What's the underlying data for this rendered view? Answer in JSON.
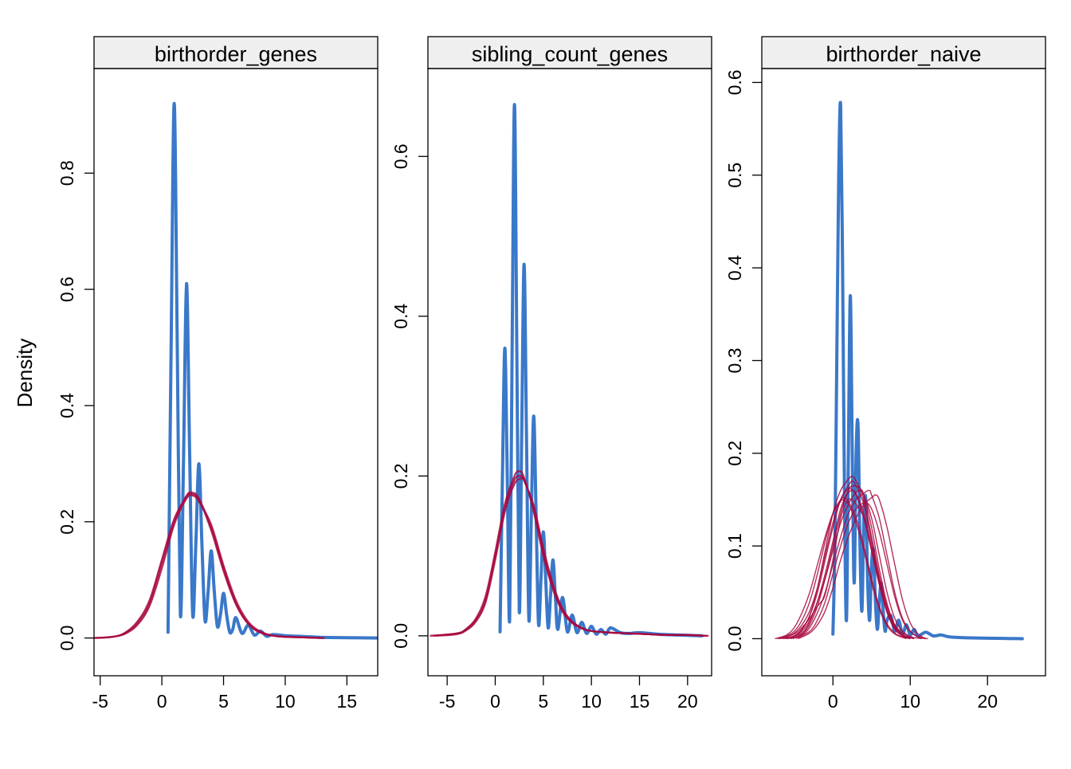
{
  "ylabel": "Density",
  "colors": {
    "observed": "#3A78C9",
    "imputed": "#A8083F",
    "strip_bg": "#EFEFEF"
  },
  "chart_data": [
    {
      "type": "line",
      "title": "birthorder_genes",
      "xlim": [
        -5.5,
        17.5
      ],
      "ylim": [
        -0.065,
        0.98
      ],
      "xticks": [
        -5,
        0,
        5,
        10,
        15
      ],
      "yticks": [
        0.0,
        0.2,
        0.4,
        0.6,
        0.8
      ],
      "observed": {
        "x": [
          0.5,
          0.75,
          1.0,
          1.25,
          1.5,
          1.75,
          2.0,
          2.25,
          2.5,
          2.75,
          3.0,
          3.25,
          3.5,
          3.75,
          4.0,
          4.25,
          4.5,
          4.75,
          5.0,
          5.25,
          5.5,
          5.75,
          6.0,
          6.5,
          7.0,
          7.5,
          8.0,
          8.5,
          9.0,
          10.0,
          11.0,
          12.0,
          13.0,
          15.0,
          17.5
        ],
        "y": [
          0.01,
          0.5,
          0.92,
          0.5,
          0.04,
          0.3,
          0.61,
          0.32,
          0.04,
          0.16,
          0.3,
          0.16,
          0.03,
          0.08,
          0.15,
          0.08,
          0.02,
          0.04,
          0.077,
          0.04,
          0.01,
          0.015,
          0.035,
          0.008,
          0.022,
          0.005,
          0.012,
          0.003,
          0.006,
          0.004,
          0.003,
          0.002,
          0.001,
          0.0005,
          0.0
        ]
      },
      "imputed": [
        {
          "x": [
            -5.5,
            -4.0,
            -3.0,
            -2.0,
            -1.0,
            0.0,
            1.0,
            2.0,
            2.5,
            3.0,
            4.0,
            5.0,
            6.0,
            7.0,
            8.0,
            9.0,
            10.0,
            11.5,
            13.0
          ],
          "y": [
            0.0,
            0.002,
            0.008,
            0.025,
            0.06,
            0.13,
            0.2,
            0.245,
            0.25,
            0.24,
            0.19,
            0.12,
            0.06,
            0.025,
            0.01,
            0.004,
            0.002,
            0.001,
            0.0
          ]
        },
        {
          "x": [
            -5.3,
            -4.0,
            -3.0,
            -2.0,
            -1.0,
            0.0,
            1.0,
            2.0,
            2.5,
            3.0,
            4.0,
            5.0,
            6.0,
            7.0,
            8.0,
            9.0,
            10.0,
            11.5,
            12.8
          ],
          "y": [
            0.0,
            0.002,
            0.007,
            0.022,
            0.055,
            0.12,
            0.195,
            0.24,
            0.245,
            0.235,
            0.195,
            0.125,
            0.065,
            0.028,
            0.011,
            0.004,
            0.002,
            0.001,
            0.0
          ]
        },
        {
          "x": [
            -5.6,
            -4.0,
            -3.0,
            -2.0,
            -1.0,
            0.0,
            1.0,
            2.0,
            2.3,
            3.0,
            4.0,
            5.0,
            6.0,
            7.0,
            8.0,
            9.0,
            10.0,
            11.5,
            13.2
          ],
          "y": [
            0.0,
            0.002,
            0.009,
            0.028,
            0.065,
            0.135,
            0.205,
            0.243,
            0.248,
            0.238,
            0.185,
            0.115,
            0.058,
            0.024,
            0.009,
            0.004,
            0.002,
            0.001,
            0.0
          ]
        }
      ]
    },
    {
      "type": "line",
      "title": "sibling_count_genes",
      "xlim": [
        -7,
        22.5
      ],
      "ylim": [
        -0.05,
        0.71
      ],
      "xticks": [
        -5,
        0,
        5,
        10,
        15,
        20
      ],
      "yticks": [
        0.0,
        0.2,
        0.4,
        0.6
      ],
      "observed": {
        "x": [
          0.5,
          0.75,
          1.0,
          1.25,
          1.5,
          1.75,
          2.0,
          2.25,
          2.5,
          2.75,
          3.0,
          3.25,
          3.5,
          3.75,
          4.0,
          4.25,
          4.5,
          4.75,
          5.0,
          5.25,
          5.5,
          5.75,
          6.0,
          6.25,
          6.5,
          7.0,
          7.5,
          8.0,
          8.5,
          9.0,
          9.5,
          10.0,
          10.5,
          11.0,
          11.5,
          12.0,
          13.0,
          14.0,
          15.0,
          17.0,
          19.0,
          21.5
        ],
        "y": [
          0.005,
          0.2,
          0.36,
          0.2,
          0.02,
          0.35,
          0.665,
          0.35,
          0.03,
          0.25,
          0.465,
          0.25,
          0.02,
          0.15,
          0.275,
          0.15,
          0.015,
          0.07,
          0.13,
          0.07,
          0.01,
          0.05,
          0.095,
          0.05,
          0.008,
          0.048,
          0.005,
          0.026,
          0.004,
          0.017,
          0.003,
          0.012,
          0.002,
          0.008,
          0.002,
          0.01,
          0.004,
          0.003,
          0.004,
          0.002,
          0.001,
          0.0
        ]
      },
      "imputed": [
        {
          "x": [
            -6.5,
            -4.0,
            -3.0,
            -2.0,
            -1.0,
            0.0,
            1.0,
            2.0,
            2.6,
            3.0,
            4.0,
            5.0,
            6.0,
            7.0,
            8.0,
            9.0,
            10.0,
            12.0,
            14.0,
            16.0,
            18.0,
            20.0,
            22.0
          ],
          "y": [
            0.0,
            0.003,
            0.008,
            0.02,
            0.045,
            0.1,
            0.16,
            0.195,
            0.2,
            0.195,
            0.16,
            0.105,
            0.062,
            0.032,
            0.017,
            0.01,
            0.006,
            0.004,
            0.003,
            0.002,
            0.001,
            0.001,
            0.0
          ]
        },
        {
          "x": [
            -6.8,
            -4.0,
            -3.0,
            -2.0,
            -1.0,
            0.0,
            1.0,
            2.0,
            2.5,
            3.0,
            4.0,
            5.0,
            6.0,
            7.0,
            8.0,
            9.0,
            10.0,
            12.0,
            14.0,
            16.0,
            18.0,
            20.0,
            22.2
          ],
          "y": [
            0.0,
            0.003,
            0.009,
            0.022,
            0.05,
            0.105,
            0.165,
            0.2,
            0.206,
            0.198,
            0.155,
            0.1,
            0.058,
            0.03,
            0.016,
            0.009,
            0.006,
            0.004,
            0.003,
            0.002,
            0.001,
            0.001,
            0.0
          ]
        },
        {
          "x": [
            -6.2,
            -4.0,
            -3.0,
            -2.0,
            -1.0,
            0.0,
            1.0,
            2.0,
            2.7,
            3.0,
            4.0,
            5.0,
            6.0,
            7.0,
            8.0,
            9.0,
            10.0,
            12.0,
            14.0,
            16.0,
            18.0,
            20.0,
            21.8
          ],
          "y": [
            0.0,
            0.002,
            0.007,
            0.018,
            0.042,
            0.095,
            0.155,
            0.19,
            0.197,
            0.194,
            0.163,
            0.11,
            0.065,
            0.034,
            0.018,
            0.01,
            0.006,
            0.004,
            0.003,
            0.002,
            0.001,
            0.001,
            0.0
          ]
        }
      ]
    },
    {
      "type": "line",
      "title": "birthorder_naive",
      "xlim": [
        -9.2,
        27.5
      ],
      "ylim": [
        -0.04,
        0.615
      ],
      "xticks": [
        0,
        10,
        20
      ],
      "yticks": [
        0.0,
        0.1,
        0.2,
        0.3,
        0.4,
        0.5,
        0.6
      ],
      "observed": {
        "x": [
          0.0,
          0.25,
          0.5,
          0.75,
          1.0,
          1.25,
          1.5,
          1.75,
          2.0,
          2.25,
          2.5,
          2.75,
          3.0,
          3.25,
          3.5,
          3.75,
          4.0,
          4.25,
          4.5,
          4.75,
          5.0,
          5.25,
          5.5,
          5.75,
          6.0,
          6.25,
          6.5,
          6.75,
          7.0,
          7.5,
          8.0,
          8.5,
          9.0,
          9.5,
          10.0,
          10.5,
          11.0,
          12.0,
          13.0,
          14.0,
          15.0,
          17.0,
          20.0,
          24.5
        ],
        "y": [
          0.005,
          0.1,
          0.3,
          0.5,
          0.575,
          0.4,
          0.15,
          0.02,
          0.2,
          0.37,
          0.2,
          0.06,
          0.2,
          0.23,
          0.1,
          0.03,
          0.13,
          0.15,
          0.06,
          0.02,
          0.08,
          0.095,
          0.04,
          0.01,
          0.04,
          0.06,
          0.03,
          0.008,
          0.02,
          0.025,
          0.008,
          0.02,
          0.005,
          0.015,
          0.004,
          0.01,
          0.003,
          0.007,
          0.003,
          0.004,
          0.002,
          0.001,
          0.0005,
          0.0
        ]
      },
      "imputed": [
        {
          "x": [
            -6.5,
            -5,
            -4,
            -3,
            -2,
            -1,
            0,
            1,
            2,
            2.5,
            3,
            4,
            5,
            6,
            7,
            8,
            9,
            10,
            11.5
          ],
          "y": [
            0.0,
            0.003,
            0.01,
            0.025,
            0.05,
            0.085,
            0.12,
            0.15,
            0.165,
            0.17,
            0.165,
            0.145,
            0.105,
            0.065,
            0.035,
            0.015,
            0.006,
            0.002,
            0.0
          ]
        },
        {
          "x": [
            -7.2,
            -6,
            -5,
            -4,
            -3,
            -2,
            -1,
            0,
            1,
            1.5,
            2,
            3,
            4,
            5,
            6,
            7,
            8,
            9,
            10
          ],
          "y": [
            0.0,
            0.003,
            0.008,
            0.02,
            0.04,
            0.07,
            0.105,
            0.135,
            0.15,
            0.152,
            0.148,
            0.13,
            0.1,
            0.065,
            0.035,
            0.016,
            0.006,
            0.002,
            0.0
          ]
        },
        {
          "x": [
            -5.5,
            -4,
            -3,
            -2,
            -1,
            0,
            1,
            2,
            3,
            4,
            4.7,
            5,
            6,
            7,
            8,
            9,
            10,
            11,
            12
          ],
          "y": [
            0.0,
            0.004,
            0.012,
            0.028,
            0.05,
            0.08,
            0.11,
            0.135,
            0.15,
            0.157,
            0.16,
            0.155,
            0.13,
            0.09,
            0.05,
            0.022,
            0.008,
            0.002,
            0.0
          ]
        },
        {
          "x": [
            -6.0,
            -5,
            -4,
            -3,
            -2,
            -1,
            0,
            1,
            2,
            2.5,
            3,
            4,
            5,
            6,
            7,
            8,
            9,
            10
          ],
          "y": [
            0.0,
            0.003,
            0.01,
            0.025,
            0.055,
            0.095,
            0.135,
            0.16,
            0.172,
            0.175,
            0.17,
            0.15,
            0.11,
            0.068,
            0.034,
            0.014,
            0.004,
            0.0
          ]
        },
        {
          "x": [
            -6.8,
            -5,
            -4,
            -3,
            -2,
            -1.5,
            -1,
            0,
            1,
            2,
            3,
            4,
            5,
            6,
            7,
            8,
            9,
            10
          ],
          "y": [
            0.0,
            0.005,
            0.012,
            0.022,
            0.035,
            0.04,
            0.048,
            0.085,
            0.13,
            0.15,
            0.145,
            0.13,
            0.095,
            0.06,
            0.03,
            0.012,
            0.004,
            0.0
          ]
        },
        {
          "x": [
            -7.5,
            -6,
            -5,
            -4,
            -3,
            -2,
            -1,
            0,
            1,
            1.2,
            2,
            3,
            4,
            5,
            6,
            7,
            8,
            9.5
          ],
          "y": [
            0.0,
            0.004,
            0.012,
            0.028,
            0.05,
            0.08,
            0.11,
            0.135,
            0.148,
            0.15,
            0.145,
            0.125,
            0.095,
            0.06,
            0.032,
            0.014,
            0.005,
            0.0
          ]
        },
        {
          "x": [
            -4.8,
            -3,
            -2,
            -1,
            0,
            1,
            2,
            3,
            4,
            4.2,
            5,
            6,
            7,
            8,
            9,
            10,
            11,
            12.3
          ],
          "y": [
            0.0,
            0.008,
            0.02,
            0.04,
            0.07,
            0.1,
            0.125,
            0.14,
            0.147,
            0.148,
            0.14,
            0.115,
            0.08,
            0.045,
            0.02,
            0.008,
            0.002,
            0.0
          ]
        },
        {
          "x": [
            -6.2,
            -5,
            -4,
            -3,
            -2,
            -1,
            0,
            1,
            2,
            3,
            3.5,
            4,
            5,
            6,
            7,
            8,
            9,
            10.5
          ],
          "y": [
            0.0,
            0.003,
            0.008,
            0.02,
            0.04,
            0.065,
            0.095,
            0.125,
            0.145,
            0.158,
            0.16,
            0.155,
            0.13,
            0.09,
            0.05,
            0.022,
            0.008,
            0.0
          ]
        },
        {
          "x": [
            -5.2,
            -4,
            -3,
            -2,
            -1,
            0,
            1,
            1.8,
            2.5,
            3,
            4,
            5,
            6,
            7,
            8,
            9,
            10.5
          ],
          "y": [
            0.0,
            0.005,
            0.015,
            0.035,
            0.065,
            0.1,
            0.135,
            0.155,
            0.16,
            0.156,
            0.135,
            0.1,
            0.062,
            0.03,
            0.012,
            0.004,
            0.0
          ]
        },
        {
          "x": [
            -4.5,
            -3,
            -2,
            -1,
            0,
            1,
            2,
            3,
            4,
            5,
            5.5,
            6,
            7,
            8,
            9,
            10,
            11,
            12
          ],
          "y": [
            0.0,
            0.006,
            0.015,
            0.03,
            0.055,
            0.085,
            0.11,
            0.13,
            0.145,
            0.152,
            0.155,
            0.15,
            0.12,
            0.08,
            0.042,
            0.017,
            0.005,
            0.0
          ]
        },
        {
          "x": [
            -7.0,
            -6,
            -5,
            -4,
            -3,
            -2,
            -1,
            0,
            1,
            2,
            2.8,
            3.5,
            4,
            5,
            6,
            7,
            8,
            9,
            10.5
          ],
          "y": [
            0.0,
            0.002,
            0.006,
            0.015,
            0.03,
            0.055,
            0.09,
            0.125,
            0.15,
            0.162,
            0.165,
            0.162,
            0.155,
            0.12,
            0.075,
            0.038,
            0.014,
            0.004,
            0.0
          ]
        },
        {
          "x": [
            -5.8,
            -4,
            -3,
            -2,
            -1,
            0,
            1,
            2,
            2.2,
            3,
            4,
            5,
            6,
            7,
            8,
            9,
            10
          ],
          "y": [
            0.0,
            0.006,
            0.018,
            0.04,
            0.07,
            0.105,
            0.14,
            0.16,
            0.162,
            0.155,
            0.13,
            0.095,
            0.058,
            0.028,
            0.01,
            0.003,
            0.0
          ]
        }
      ]
    }
  ]
}
